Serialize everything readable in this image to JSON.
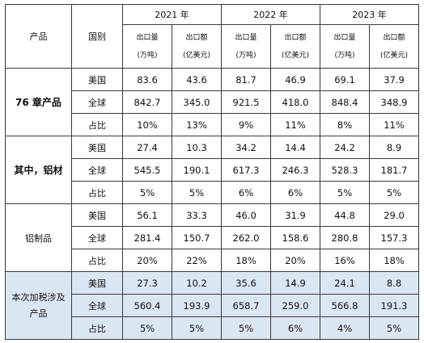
{
  "header": {
    "product_label": "产品",
    "country_label": "国别",
    "years": [
      "2021 年",
      "2022 年",
      "2023 年"
    ],
    "volume_label": [
      "出口量",
      "(万吨)"
    ],
    "value_label": [
      "出口额",
      "(亿美元)"
    ]
  },
  "groups": [
    {
      "product": "76 章产品",
      "highlight": false,
      "bold": true,
      "rows": [
        {
          "country": "美国",
          "values": [
            "83.6",
            "43.6",
            "81.7",
            "46.9",
            "69.1",
            "37.9"
          ]
        },
        {
          "country": "全球",
          "values": [
            "842.7",
            "345.0",
            "921.5",
            "418.0",
            "848.4",
            "348.9"
          ]
        },
        {
          "country": "占比",
          "values": [
            "10%",
            "13%",
            "9%",
            "11%",
            "8%",
            "11%"
          ]
        }
      ]
    },
    {
      "product": "其中，铝材",
      "highlight": false,
      "bold": true,
      "rows": [
        {
          "country": "美国",
          "values": [
            "27.4",
            "10.3",
            "34.2",
            "14.4",
            "24.2",
            "8.9"
          ]
        },
        {
          "country": "全球",
          "values": [
            "545.5",
            "190.1",
            "617.3",
            "246.3",
            "528.3",
            "181.7"
          ]
        },
        {
          "country": "占比",
          "values": [
            "5%",
            "5%",
            "6%",
            "6%",
            "5%",
            "5%"
          ]
        }
      ]
    },
    {
      "product": "铝制品",
      "highlight": false,
      "bold": false,
      "rows": [
        {
          "country": "美国",
          "values": [
            "56.1",
            "33.3",
            "46.0",
            "31.9",
            "44.8",
            "29.0"
          ]
        },
        {
          "country": "全球",
          "values": [
            "281.4",
            "150.7",
            "262.0",
            "158.6",
            "280.8",
            "157.3"
          ]
        },
        {
          "country": "占比",
          "values": [
            "20%",
            "22%",
            "18%",
            "20%",
            "16%",
            "18%"
          ]
        }
      ]
    },
    {
      "product": "本次加税涉及产品",
      "highlight": true,
      "bold": false,
      "rows": [
        {
          "country": "美国",
          "values": [
            "27.3",
            "10.2",
            "35.6",
            "14.9",
            "24.1",
            "8.8"
          ]
        },
        {
          "country": "全球",
          "values": [
            "560.4",
            "193.9",
            "658.7",
            "259.0",
            "566.8",
            "191.3"
          ]
        },
        {
          "country": "占比",
          "values": [
            "5%",
            "5%",
            "5%",
            "6%",
            "4%",
            "5%"
          ]
        }
      ]
    }
  ]
}
